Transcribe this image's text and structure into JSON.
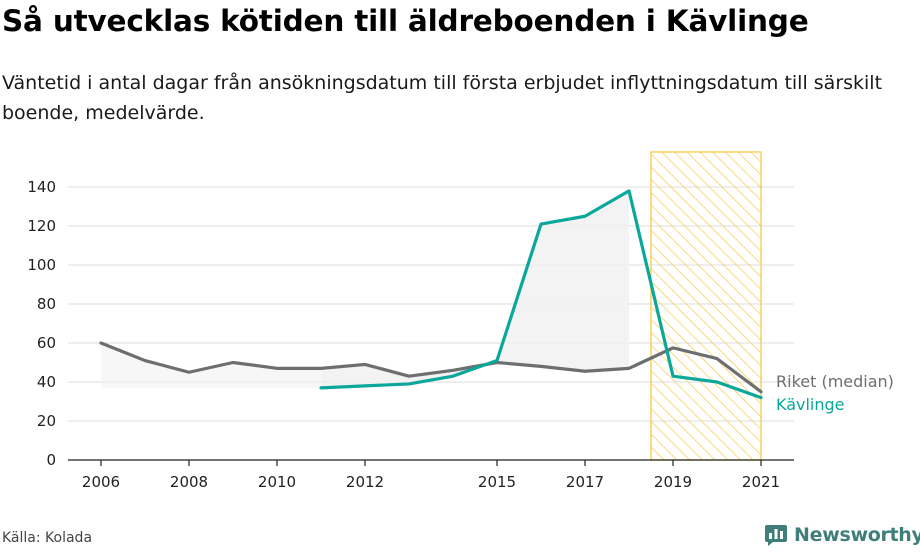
{
  "title": "Så utvecklas kötiden till äldreboenden i Kävlinge",
  "subtitle": "Väntetid i antal dagar från ansökningsdatum till första erbjudet inflyttningsdatum till särskilt boende, medelvärde.",
  "source": "Källa: Kolada",
  "brand": {
    "name": "Newsworthy",
    "icon": "newsworthy-logo-icon"
  },
  "colors": {
    "riket": "#6d6e71",
    "kavlinge": "#0aa79a",
    "grid": "#dddddd",
    "highlight_stroke": "#f7c94a",
    "area_fill": "#f0f0f0"
  },
  "chart_data": {
    "type": "line",
    "title": "Så utvecklas kötiden till äldreboenden i Kävlinge",
    "xlabel": "",
    "ylabel": "",
    "xlim": [
      2005.5,
      2021.8
    ],
    "ylim": [
      0,
      140
    ],
    "yticks": [
      0,
      20,
      40,
      60,
      80,
      100,
      120,
      140
    ],
    "xticks": [
      2006,
      2008,
      2010,
      2012,
      2015,
      2017,
      2019,
      2021
    ],
    "grid": true,
    "highlight_range": [
      2018.5,
      2021
    ],
    "series": [
      {
        "name": "Riket (median)",
        "x": [
          2006,
          2007,
          2008,
          2009,
          2010,
          2011,
          2012,
          2013,
          2014,
          2015,
          2016,
          2017,
          2018,
          2019,
          2020,
          2021
        ],
        "values": [
          60,
          51,
          45,
          50,
          47,
          47,
          49,
          43,
          46,
          50,
          48,
          45.5,
          47,
          57.5,
          52,
          35
        ]
      },
      {
        "name": "Kävlinge",
        "x": [
          2011,
          2012,
          2013,
          2014,
          2015,
          2016,
          2017,
          2018,
          2019,
          2020,
          2021
        ],
        "values": [
          37,
          38,
          39,
          43,
          51,
          121,
          125,
          138,
          43,
          40,
          32
        ]
      }
    ]
  }
}
